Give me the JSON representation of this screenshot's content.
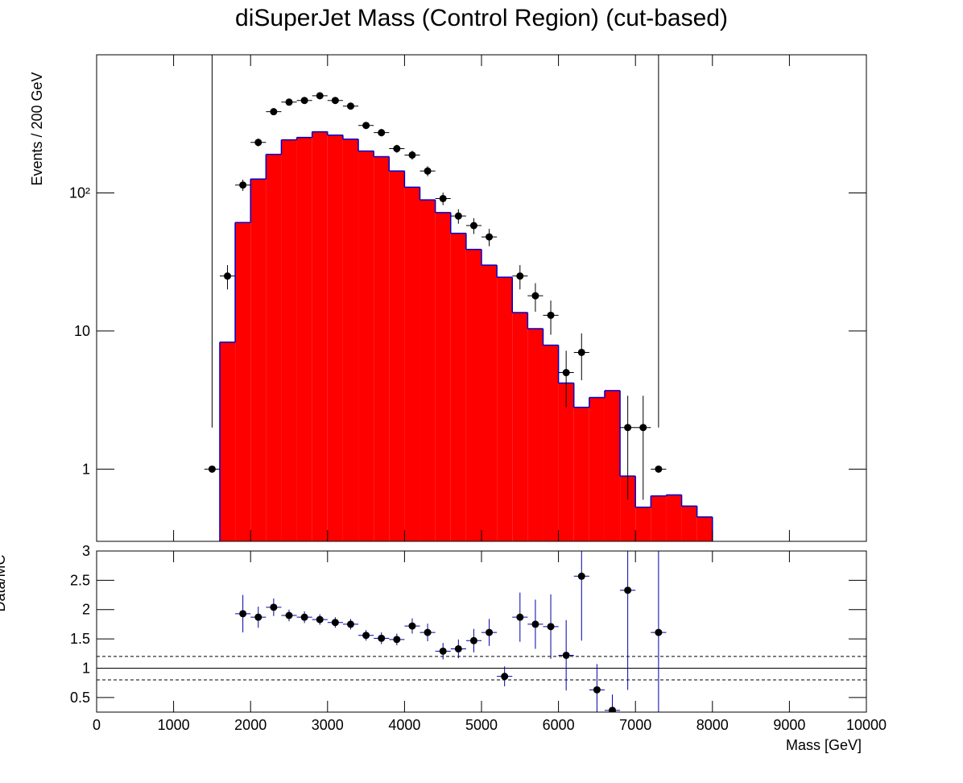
{
  "chart_data": [
    {
      "type": "histogram",
      "title": "diSuperJet Mass (Control Region) (cut-based)",
      "ylabel": "Events / 200 GeV",
      "log_y": true,
      "xlim": [
        0,
        10000
      ],
      "ylim": [
        0.3,
        1000
      ],
      "yticks": [
        1,
        10,
        {
          "value": 100,
          "label": "10²"
        }
      ],
      "color": "#ff0000",
      "edgecolor": "#0000cc",
      "bins": [
        1600,
        1800,
        2000,
        2200,
        2400,
        2600,
        2800,
        3000,
        3200,
        3400,
        3600,
        3800,
        4000,
        4200,
        4400,
        4600,
        4800,
        5000,
        5200,
        5400,
        5600,
        5800,
        6000,
        6200,
        6400,
        6600,
        6800,
        7000,
        7200,
        7400,
        7600,
        7800,
        8000
      ],
      "counts": [
        8.3,
        61,
        126,
        190,
        242,
        252,
        277,
        262,
        245,
        201,
        183,
        144,
        110,
        89,
        72,
        51,
        39,
        30,
        24.5,
        13.6,
        10.4,
        7.9,
        4.2,
        2.8,
        3.3,
        3.7,
        0.89,
        0.53,
        0.64,
        0.65,
        0.54,
        0.45
      ],
      "overlay": {
        "color": "#000000",
        "xerr": 100,
        "x": [
          1500,
          1700,
          1900,
          2100,
          2300,
          2500,
          2700,
          2900,
          3100,
          3300,
          3500,
          3700,
          3900,
          4100,
          4300,
          4500,
          4700,
          4900,
          5100,
          5500,
          5700,
          5900,
          6100,
          6300,
          6900,
          7100,
          7300
        ],
        "values": [
          1,
          25,
          114,
          232,
          387,
          454,
          467,
          505,
          467,
          425,
          308,
          273,
          209,
          188,
          144,
          91,
          68,
          58,
          48,
          25,
          18,
          13,
          5,
          7,
          2,
          2,
          1
        ],
        "errors": [
          1,
          5,
          10.7,
          15,
          20,
          21,
          22,
          22,
          22,
          21,
          18,
          17,
          14,
          14,
          12,
          9.5,
          8.2,
          7.6,
          6.9,
          5,
          4.2,
          3.6,
          2.2,
          2.6,
          1.4,
          1.4,
          1
        ]
      }
    },
    {
      "type": "ratio",
      "ylabel": "Data/MC",
      "xlabel": "Mass [GeV]",
      "xlim": [
        0,
        10000
      ],
      "xticks": [
        0,
        1000,
        2000,
        3000,
        4000,
        5000,
        6000,
        7000,
        8000,
        9000,
        10000
      ],
      "ylim": [
        0.25,
        3
      ],
      "yticks": [
        0.5,
        1,
        1.5,
        2,
        2.5,
        3
      ],
      "reference_lines": [
        0.8,
        1,
        1.2
      ],
      "color": "#000000",
      "errcolor": "#0000aa",
      "xerr": 100,
      "x": [
        1900,
        2100,
        2300,
        2500,
        2700,
        2900,
        3100,
        3300,
        3500,
        3700,
        3900,
        4100,
        4300,
        4500,
        4700,
        4900,
        5100,
        5300,
        5500,
        5700,
        5900,
        6100,
        6300,
        6500,
        6700,
        6900,
        7300
      ],
      "values": [
        1.93,
        1.87,
        2.04,
        1.9,
        1.87,
        1.83,
        1.78,
        1.75,
        1.56,
        1.51,
        1.49,
        1.72,
        1.61,
        1.29,
        1.33,
        1.47,
        1.61,
        0.86,
        1.87,
        1.75,
        1.71,
        1.22,
        2.57,
        0.63,
        0.28,
        2.33,
        1.61
      ],
      "errors": [
        0.32,
        0.18,
        0.15,
        0.1,
        0.1,
        0.09,
        0.09,
        0.09,
        0.09,
        0.1,
        0.1,
        0.13,
        0.15,
        0.14,
        0.16,
        0.2,
        0.23,
        0.17,
        0.42,
        0.42,
        0.55,
        0.6,
        1.1,
        0.44,
        0.27,
        1.7,
        1.6
      ]
    }
  ]
}
